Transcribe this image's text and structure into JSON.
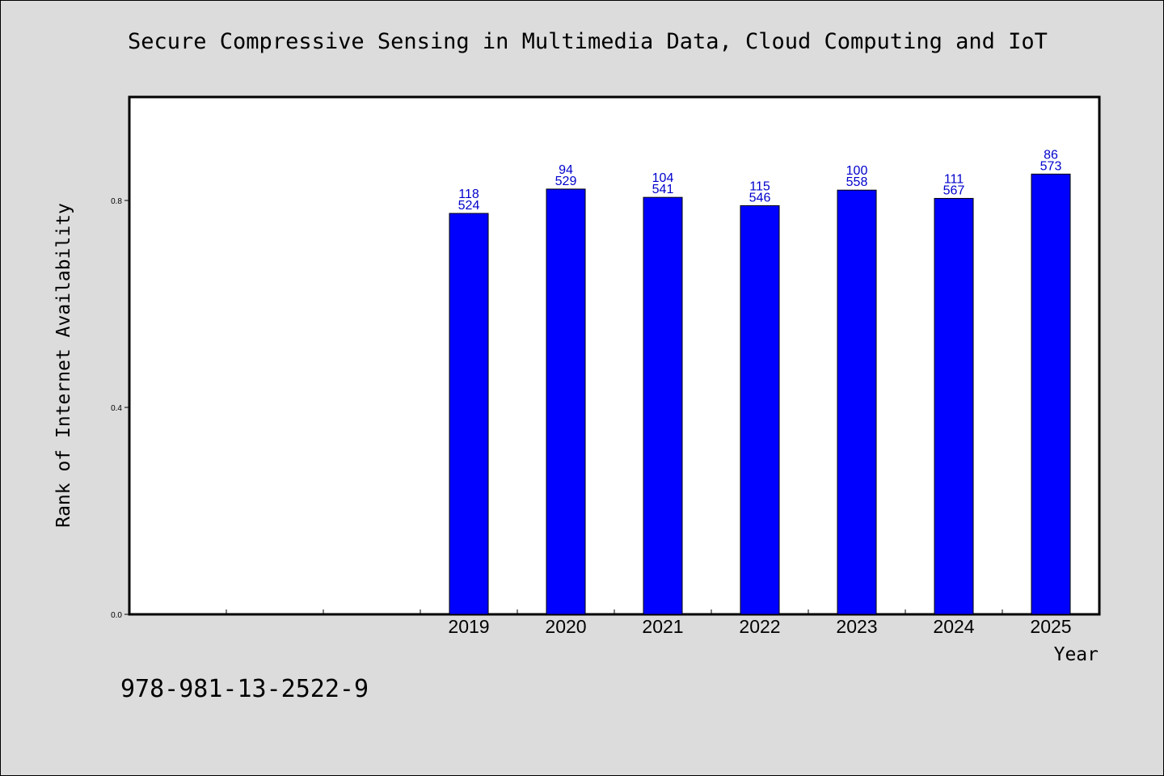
{
  "chart_data": {
    "type": "bar",
    "title": "Secure Compressive Sensing in Multimedia Data, Cloud Computing and IoT",
    "xlabel": "Year",
    "ylabel": "Rank of Internet Availability",
    "categories": [
      "",
      "",
      "",
      "2019",
      "2020",
      "2021",
      "2022",
      "2023",
      "2024",
      "2025"
    ],
    "values": [
      null,
      null,
      null,
      0.775,
      0.822,
      0.806,
      0.79,
      0.82,
      0.804,
      0.851
    ],
    "data_labels": [
      null,
      null,
      null,
      [
        "118",
        "524"
      ],
      [
        "94",
        "529"
      ],
      [
        "104",
        "541"
      ],
      [
        "115",
        "546"
      ],
      [
        "100",
        "558"
      ],
      [
        "111",
        "567"
      ],
      [
        "86",
        "573"
      ]
    ],
    "ylim": [
      0,
      1.0
    ],
    "yticks": [
      0.0,
      0.4,
      0.8
    ],
    "ytick_labels": [
      "0.0",
      "0.4",
      "0.8"
    ],
    "grid": false,
    "bar_color": "#0000ff",
    "label_color": "#0000cc"
  },
  "footer": {
    "isbn": "978-981-13-2522-9"
  }
}
